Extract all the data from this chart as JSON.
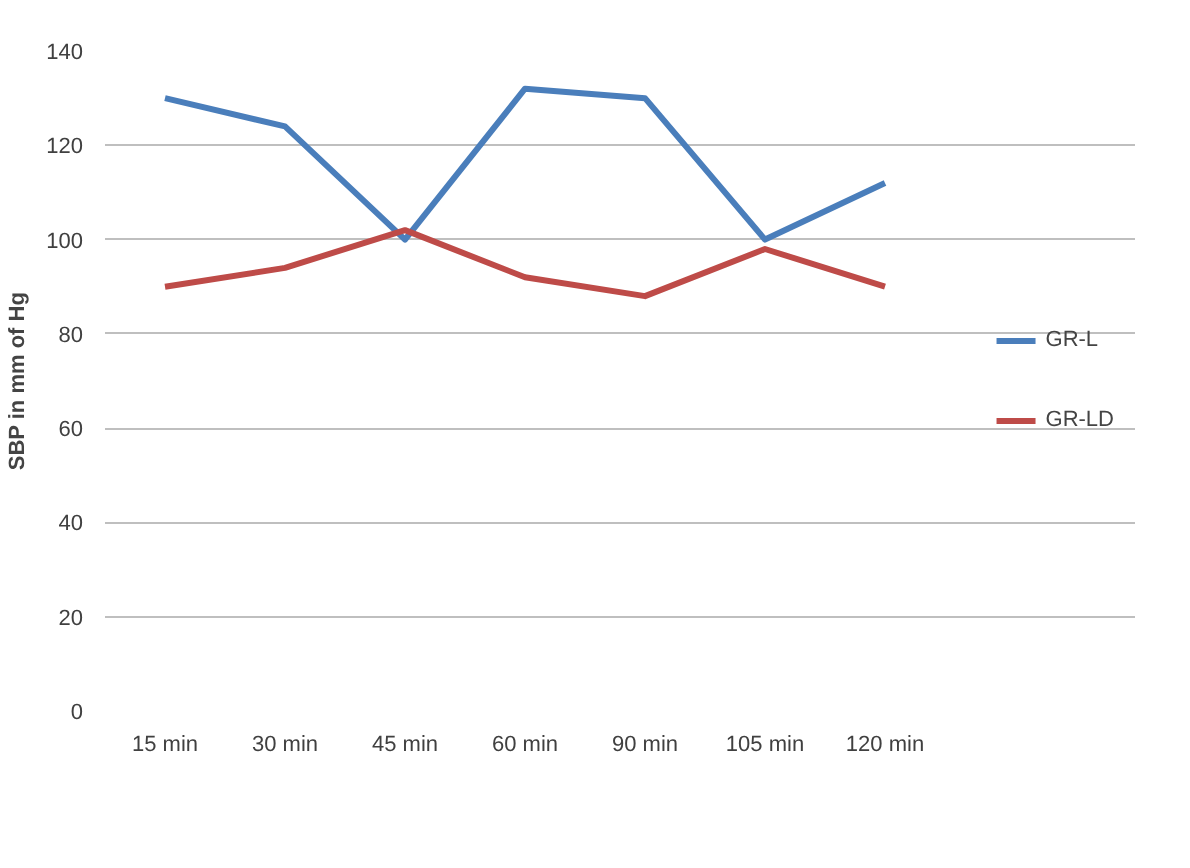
{
  "chart_data": {
    "type": "line",
    "ylabel": "SBP in mm of Hg",
    "categories": [
      "15 min",
      "30 min",
      "45 min",
      "60 min",
      "90 min",
      "105 min",
      "120 min"
    ],
    "series": [
      {
        "name": "GR-L",
        "color": "#4a7ebb",
        "values": [
          130,
          124,
          100,
          132,
          130,
          100,
          112
        ]
      },
      {
        "name": "GR-LD",
        "color": "#be4b48",
        "values": [
          90,
          94,
          102,
          92,
          88,
          98,
          90
        ]
      }
    ],
    "ylim": [
      0,
      140
    ],
    "yticks": [
      0,
      20,
      40,
      60,
      80,
      100,
      120,
      140
    ],
    "grid": "y",
    "legend": "right",
    "marker": "none",
    "line_style": "solid"
  }
}
